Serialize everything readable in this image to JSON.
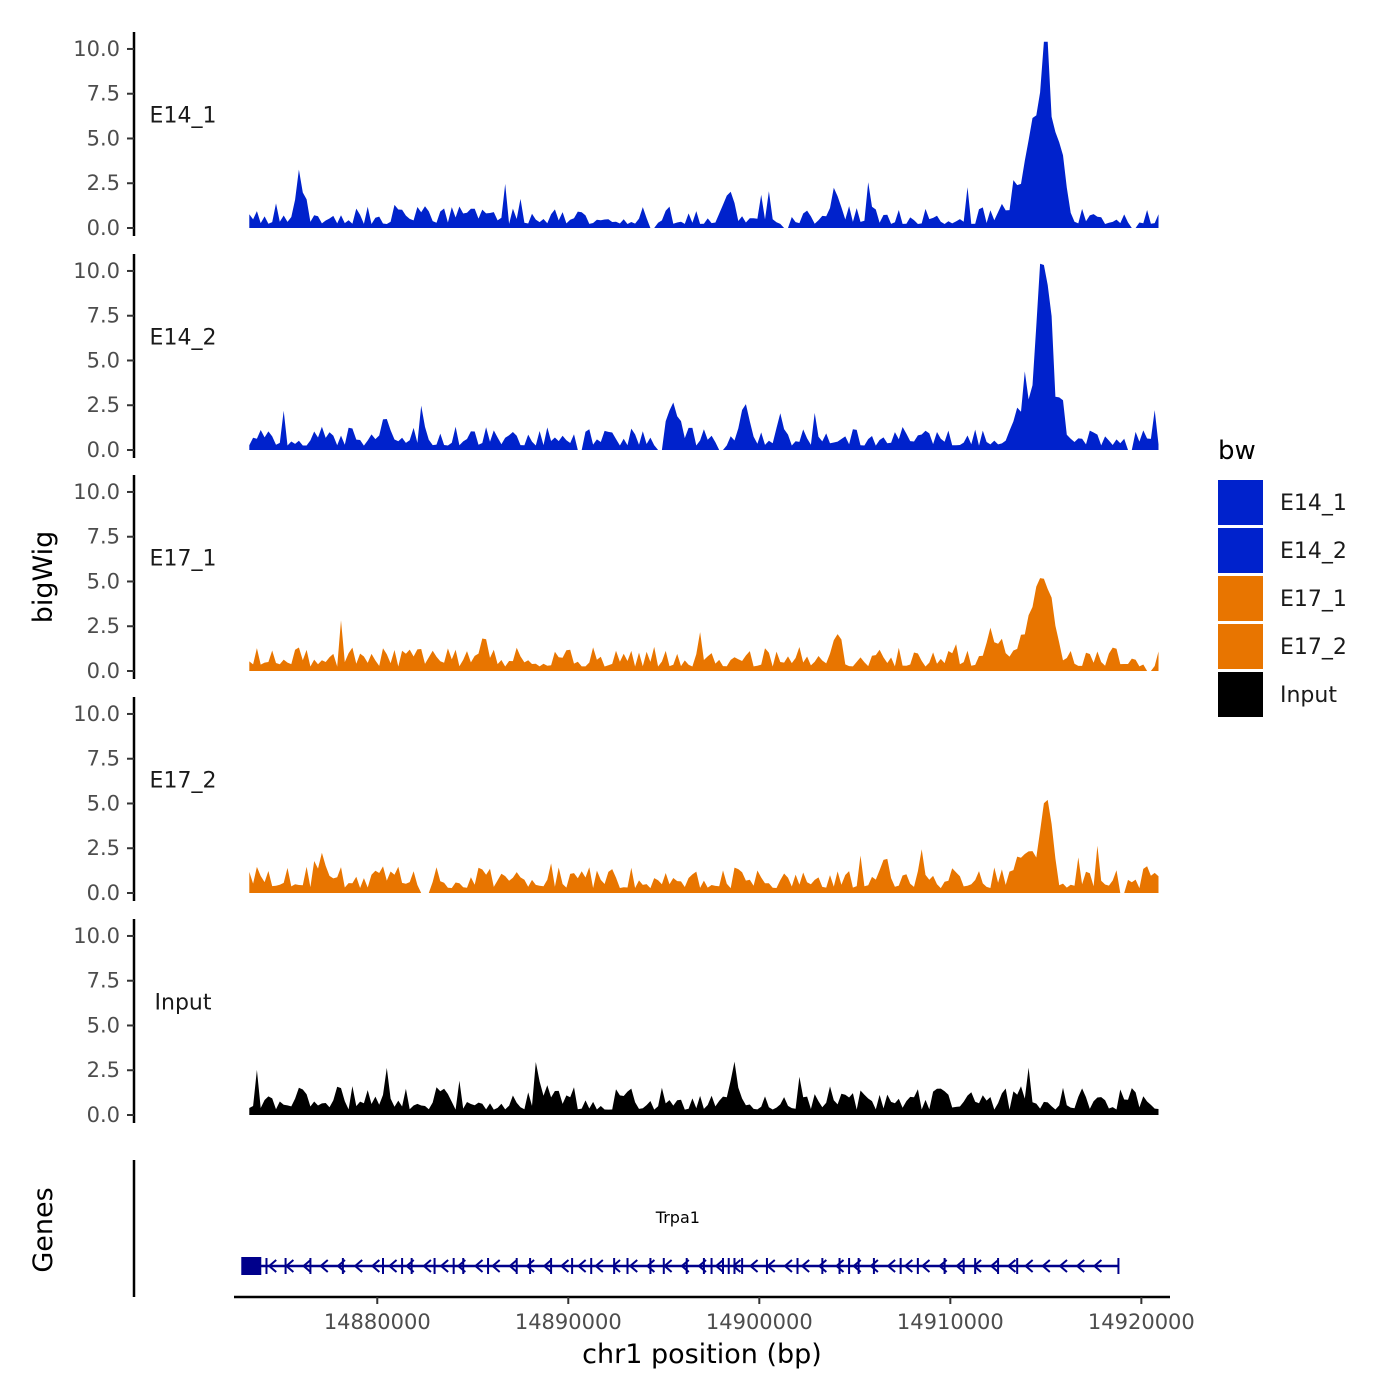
{
  "chart_data": {
    "type": "area",
    "chromosome": "chr1",
    "xlabel": "chr1 position (bp)",
    "ylabel": "bigWig",
    "genes_track_label": "Genes",
    "xlim": [
      14872500,
      14921500
    ],
    "data_range": [
      14873300,
      14920900
    ],
    "x_ticks": [
      14880000,
      14890000,
      14900000,
      14910000,
      14920000
    ],
    "x_tick_labels": [
      "14880000",
      "14890000",
      "14900000",
      "14910000",
      "14920000"
    ],
    "ylim": [
      0,
      10.5
    ],
    "y_ticks": [
      0,
      2.5,
      5,
      7.5,
      10
    ],
    "y_tick_labels": [
      "0.0",
      "2.5",
      "5.0",
      "7.5",
      "10.0"
    ],
    "legend": {
      "title": "bw",
      "entries": [
        {
          "label": "E14_1",
          "color": "#0022CC"
        },
        {
          "label": "E14_2",
          "color": "#0022CC"
        },
        {
          "label": "E17_1",
          "color": "#E87500"
        },
        {
          "label": "E17_2",
          "color": "#E87500"
        },
        {
          "label": "Input",
          "color": "#000000"
        }
      ]
    },
    "series": [
      {
        "name": "E14_1",
        "color": "#0022CC",
        "baseline": 0.9,
        "noise": 1.0,
        "peaks": [
          [
            14875900,
            1.9,
            220
          ],
          [
            14904000,
            1.8,
            220
          ],
          [
            14898400,
            1.5,
            250
          ],
          [
            14914200,
            3.8,
            700
          ],
          [
            14914900,
            5.5,
            260
          ],
          [
            14915000,
            9.0,
            160
          ],
          [
            14915700,
            4.0,
            300
          ]
        ],
        "gaps": [
          [
            14894200,
            14894600
          ],
          [
            14901200,
            14901500
          ],
          [
            14919500,
            14919800
          ]
        ]
      },
      {
        "name": "E14_2",
        "color": "#0022CC",
        "baseline": 0.9,
        "noise": 1.1,
        "peaks": [
          [
            14880500,
            1.6,
            200
          ],
          [
            14895500,
            2.4,
            220
          ],
          [
            14899300,
            2.6,
            180
          ],
          [
            14914300,
            4.2,
            600
          ],
          [
            14914800,
            5.2,
            220
          ],
          [
            14915100,
            6.0,
            180
          ],
          [
            14915600,
            3.0,
            300
          ]
        ],
        "gaps": [
          [
            14890400,
            14890700
          ],
          [
            14894700,
            14895000
          ],
          [
            14897800,
            14898100
          ],
          [
            14919200,
            14919500
          ]
        ]
      },
      {
        "name": "E17_1",
        "color": "#E87500",
        "baseline": 1.0,
        "noise": 1.0,
        "peaks": [
          [
            14885500,
            1.2,
            200
          ],
          [
            14904000,
            2.0,
            220
          ],
          [
            14912300,
            1.8,
            400
          ],
          [
            14914400,
            2.6,
            600
          ],
          [
            14914900,
            3.8,
            260
          ],
          [
            14915300,
            2.0,
            300
          ]
        ],
        "gaps": [
          [
            14920300,
            14920600
          ]
        ]
      },
      {
        "name": "E17_2",
        "color": "#E87500",
        "baseline": 1.0,
        "noise": 1.1,
        "peaks": [
          [
            14877000,
            1.2,
            200
          ],
          [
            14906500,
            1.6,
            250
          ],
          [
            14914000,
            1.6,
            400
          ],
          [
            14914900,
            2.8,
            300
          ],
          [
            14915100,
            4.2,
            160
          ]
        ],
        "gaps": [
          [
            14882300,
            14882700
          ],
          [
            14918800,
            14919100
          ]
        ]
      },
      {
        "name": "Input",
        "color": "#000000",
        "baseline": 1.2,
        "noise": 1.0,
        "peaks": [
          [
            14888500,
            1.2,
            220
          ],
          [
            14898500,
            1.2,
            300
          ],
          [
            14909700,
            0.8,
            220
          ]
        ],
        "gaps": []
      }
    ],
    "genes": [
      {
        "name": "Trpa1",
        "start": 14873300,
        "end": 14918800,
        "strand": "-",
        "color": "#00008B",
        "exons": [
          14873300,
          14874200,
          14875200,
          14876500,
          14878200,
          14880300,
          14881300,
          14881800,
          14883000,
          14884000,
          14884500,
          14885800,
          14887300,
          14888000,
          14889100,
          14890200,
          14891200,
          14892400,
          14893100,
          14894300,
          14895000,
          14896200,
          14897100,
          14897500,
          14898100,
          14898400,
          14898700,
          14899100,
          14900400,
          14902000,
          14903300,
          14904200,
          14904700,
          14905200,
          14906000,
          14907400,
          14908300,
          14909700,
          14910700,
          14911300,
          14912500,
          14913500,
          14918800
        ]
      }
    ]
  }
}
